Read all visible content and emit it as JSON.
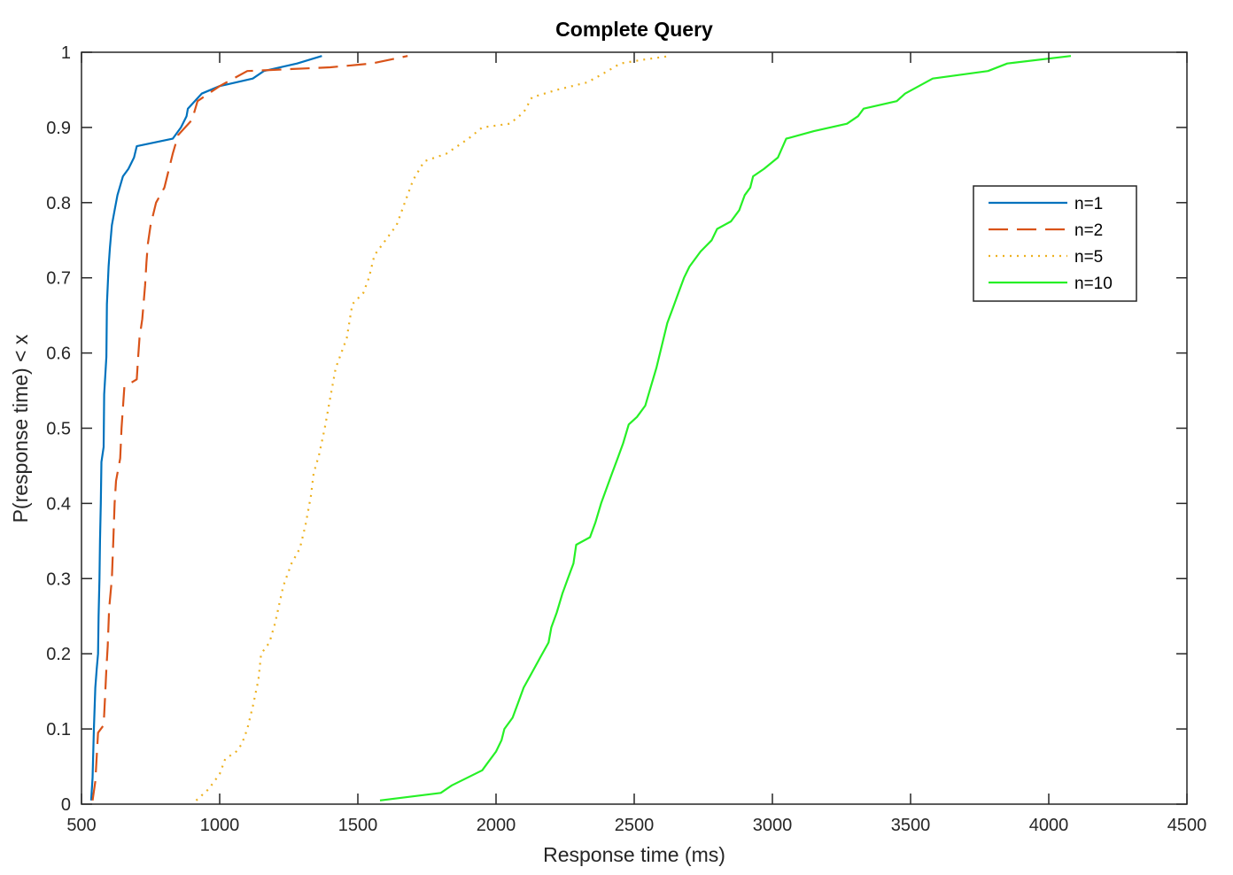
{
  "chart_data": {
    "type": "line",
    "title": "Complete Query",
    "xlabel": "Response time (ms)",
    "ylabel": "P(response time) < x",
    "xlim": [
      500,
      4500
    ],
    "ylim": [
      0,
      1
    ],
    "x_ticks": [
      500,
      1000,
      1500,
      2000,
      2500,
      3000,
      3500,
      4000,
      4500
    ],
    "y_ticks": [
      0,
      0.1,
      0.2,
      0.3,
      0.4,
      0.5,
      0.6,
      0.7,
      0.8,
      0.9,
      1
    ],
    "x_tick_labels": [
      "500",
      "1000",
      "1500",
      "2000",
      "2500",
      "3000",
      "3500",
      "4000",
      "4500"
    ],
    "y_tick_labels": [
      "0",
      "0.1",
      "0.2",
      "0.3",
      "0.4",
      "0.5",
      "0.6",
      "0.7",
      "0.8",
      "0.9",
      "1"
    ],
    "grid": false,
    "legend_position": "top-right",
    "series": [
      {
        "name": "n=1",
        "color": "#0072bd",
        "style": "solid",
        "points": [
          [
            535,
            0.005
          ],
          [
            540,
            0.035
          ],
          [
            545,
            0.1
          ],
          [
            550,
            0.155
          ],
          [
            555,
            0.18
          ],
          [
            560,
            0.2
          ],
          [
            562,
            0.25
          ],
          [
            565,
            0.3
          ],
          [
            567,
            0.35
          ],
          [
            570,
            0.4
          ],
          [
            572,
            0.455
          ],
          [
            580,
            0.475
          ],
          [
            582,
            0.545
          ],
          [
            590,
            0.595
          ],
          [
            592,
            0.665
          ],
          [
            598,
            0.715
          ],
          [
            603,
            0.74
          ],
          [
            610,
            0.77
          ],
          [
            620,
            0.79
          ],
          [
            630,
            0.81
          ],
          [
            650,
            0.835
          ],
          [
            670,
            0.845
          ],
          [
            690,
            0.86
          ],
          [
            700,
            0.875
          ],
          [
            830,
            0.885
          ],
          [
            860,
            0.9
          ],
          [
            880,
            0.915
          ],
          [
            885,
            0.925
          ],
          [
            910,
            0.935
          ],
          [
            935,
            0.945
          ],
          [
            1000,
            0.955
          ],
          [
            1120,
            0.965
          ],
          [
            1160,
            0.975
          ],
          [
            1280,
            0.985
          ],
          [
            1370,
            0.995
          ]
        ]
      },
      {
        "name": "n=2",
        "color": "#d95319",
        "style": "dashed",
        "points": [
          [
            540,
            0.005
          ],
          [
            550,
            0.03
          ],
          [
            560,
            0.095
          ],
          [
            580,
            0.105
          ],
          [
            585,
            0.14
          ],
          [
            590,
            0.18
          ],
          [
            595,
            0.21
          ],
          [
            600,
            0.26
          ],
          [
            610,
            0.3
          ],
          [
            615,
            0.35
          ],
          [
            620,
            0.4
          ],
          [
            625,
            0.43
          ],
          [
            640,
            0.46
          ],
          [
            645,
            0.5
          ],
          [
            655,
            0.555
          ],
          [
            700,
            0.565
          ],
          [
            705,
            0.595
          ],
          [
            710,
            0.62
          ],
          [
            720,
            0.645
          ],
          [
            730,
            0.69
          ],
          [
            735,
            0.72
          ],
          [
            740,
            0.745
          ],
          [
            750,
            0.77
          ],
          [
            770,
            0.8
          ],
          [
            800,
            0.82
          ],
          [
            830,
            0.865
          ],
          [
            850,
            0.89
          ],
          [
            900,
            0.91
          ],
          [
            920,
            0.935
          ],
          [
            960,
            0.945
          ],
          [
            1000,
            0.955
          ],
          [
            1050,
            0.965
          ],
          [
            1100,
            0.975
          ],
          [
            1400,
            0.98
          ],
          [
            1550,
            0.985
          ],
          [
            1680,
            0.995
          ]
        ]
      },
      {
        "name": "n=5",
        "color": "#edb120",
        "style": "dotted",
        "points": [
          [
            915,
            0.005
          ],
          [
            960,
            0.02
          ],
          [
            1000,
            0.04
          ],
          [
            1020,
            0.06
          ],
          [
            1060,
            0.07
          ],
          [
            1080,
            0.08
          ],
          [
            1100,
            0.1
          ],
          [
            1120,
            0.13
          ],
          [
            1140,
            0.165
          ],
          [
            1150,
            0.2
          ],
          [
            1180,
            0.215
          ],
          [
            1200,
            0.24
          ],
          [
            1215,
            0.265
          ],
          [
            1230,
            0.29
          ],
          [
            1260,
            0.32
          ],
          [
            1290,
            0.34
          ],
          [
            1310,
            0.37
          ],
          [
            1330,
            0.41
          ],
          [
            1340,
            0.44
          ],
          [
            1360,
            0.465
          ],
          [
            1380,
            0.5
          ],
          [
            1400,
            0.54
          ],
          [
            1420,
            0.58
          ],
          [
            1440,
            0.6
          ],
          [
            1460,
            0.62
          ],
          [
            1480,
            0.665
          ],
          [
            1520,
            0.68
          ],
          [
            1540,
            0.7
          ],
          [
            1560,
            0.73
          ],
          [
            1600,
            0.75
          ],
          [
            1640,
            0.77
          ],
          [
            1670,
            0.8
          ],
          [
            1700,
            0.83
          ],
          [
            1740,
            0.855
          ],
          [
            1820,
            0.865
          ],
          [
            1860,
            0.875
          ],
          [
            1900,
            0.885
          ],
          [
            1950,
            0.9
          ],
          [
            2050,
            0.905
          ],
          [
            2100,
            0.92
          ],
          [
            2130,
            0.94
          ],
          [
            2220,
            0.95
          ],
          [
            2330,
            0.96
          ],
          [
            2380,
            0.97
          ],
          [
            2450,
            0.985
          ],
          [
            2530,
            0.99
          ],
          [
            2630,
            0.995
          ]
        ]
      },
      {
        "name": "n=10",
        "color": "#26f026",
        "style": "solid",
        "points": [
          [
            1580,
            0.005
          ],
          [
            1800,
            0.015
          ],
          [
            1840,
            0.025
          ],
          [
            1950,
            0.045
          ],
          [
            1970,
            0.055
          ],
          [
            2000,
            0.07
          ],
          [
            2020,
            0.085
          ],
          [
            2030,
            0.1
          ],
          [
            2060,
            0.115
          ],
          [
            2080,
            0.135
          ],
          [
            2100,
            0.155
          ],
          [
            2130,
            0.175
          ],
          [
            2160,
            0.195
          ],
          [
            2190,
            0.215
          ],
          [
            2200,
            0.235
          ],
          [
            2220,
            0.255
          ],
          [
            2240,
            0.28
          ],
          [
            2260,
            0.3
          ],
          [
            2280,
            0.32
          ],
          [
            2290,
            0.345
          ],
          [
            2340,
            0.355
          ],
          [
            2360,
            0.375
          ],
          [
            2380,
            0.4
          ],
          [
            2400,
            0.42
          ],
          [
            2420,
            0.44
          ],
          [
            2440,
            0.46
          ],
          [
            2460,
            0.48
          ],
          [
            2480,
            0.505
          ],
          [
            2510,
            0.515
          ],
          [
            2540,
            0.53
          ],
          [
            2560,
            0.555
          ],
          [
            2580,
            0.58
          ],
          [
            2600,
            0.61
          ],
          [
            2620,
            0.64
          ],
          [
            2640,
            0.66
          ],
          [
            2660,
            0.68
          ],
          [
            2680,
            0.7
          ],
          [
            2700,
            0.715
          ],
          [
            2740,
            0.735
          ],
          [
            2780,
            0.75
          ],
          [
            2800,
            0.765
          ],
          [
            2850,
            0.775
          ],
          [
            2880,
            0.79
          ],
          [
            2900,
            0.81
          ],
          [
            2920,
            0.82
          ],
          [
            2930,
            0.835
          ],
          [
            2970,
            0.845
          ],
          [
            3020,
            0.86
          ],
          [
            3050,
            0.885
          ],
          [
            3150,
            0.895
          ],
          [
            3270,
            0.905
          ],
          [
            3310,
            0.915
          ],
          [
            3330,
            0.925
          ],
          [
            3450,
            0.935
          ],
          [
            3480,
            0.945
          ],
          [
            3580,
            0.965
          ],
          [
            3780,
            0.975
          ],
          [
            3850,
            0.985
          ],
          [
            4080,
            0.995
          ]
        ]
      }
    ]
  }
}
